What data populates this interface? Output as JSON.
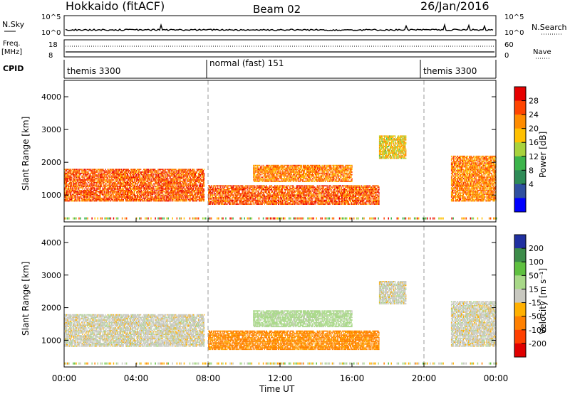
{
  "header": {
    "station": "Hokkaido (fitACF)",
    "beam": "Beam 02",
    "date": "26/Jan/2016"
  },
  "noise_panel": {
    "left_label": "N.Sky",
    "left_ticks": [
      "10^5",
      "10^0"
    ],
    "right_ticks": [
      "10^5",
      "10^0"
    ],
    "right_label": "N.Search"
  },
  "freq_panel": {
    "label_top": "Freq.",
    "label_units": "[MHz]",
    "left_ticks": [
      "18",
      "8"
    ],
    "right_ticks": [
      "60",
      "0"
    ],
    "right_label": "Nave"
  },
  "cpid_panel": {
    "label": "CPID",
    "modes": [
      "themis 3300",
      "normal (fast) 151",
      "themis 3300"
    ]
  },
  "axes": {
    "ylabel": "Slant Range [km]",
    "xlabel": "Time UT",
    "y_ticks": [
      "1000",
      "2000",
      "3000",
      "4000"
    ],
    "x_ticks": [
      "00:00",
      "04:00",
      "08:00",
      "12:00",
      "16:00",
      "20:00",
      "00:00"
    ]
  },
  "power_colorbar": {
    "label": "Power [dB]",
    "ticks": [
      "28",
      "24",
      "20",
      "16",
      "12",
      "8",
      "4"
    ],
    "colors": [
      "#e60000",
      "#ff4400",
      "#ff8c00",
      "#ffc000",
      "#a8d23c",
      "#3cb44b",
      "#2e8b57",
      "#3050a0",
      "#0000ff"
    ]
  },
  "velocity_colorbar": {
    "label": "Velocity [m s⁻¹]",
    "ticks": [
      "200",
      "100",
      "50",
      "15",
      "-15",
      "-50",
      "-100",
      "-200"
    ],
    "colors": [
      "#2030a0",
      "#3d8c4a",
      "#5fc040",
      "#a8d888",
      "#c8c8c0",
      "#ffb000",
      "#ff8000",
      "#ff4000",
      "#e00000"
    ]
  },
  "chart_data": {
    "type": "heatmap",
    "title": "Hokkaido (fitACF)",
    "xlabel": "Time UT",
    "ylabel": "Slant Range [km]",
    "x_range_hours": [
      0,
      24
    ],
    "y_range_km": [
      180,
      4500
    ],
    "cpid_boundaries_hours": [
      8,
      20
    ],
    "panels": [
      "Power [dB]",
      "Velocity [m s⁻¹]"
    ],
    "power_range_db": [
      0,
      30
    ],
    "velocity_range_ms": [
      -250,
      250
    ],
    "echo_regions": [
      {
        "t0": 0.0,
        "t1": 7.8,
        "r0": 800,
        "r1": 1800,
        "power": 24,
        "velocity": 0
      },
      {
        "t0": 8.0,
        "t1": 17.5,
        "r0": 700,
        "r1": 1300,
        "power": 24,
        "velocity": -60
      },
      {
        "t0": 10.5,
        "t1": 16.0,
        "r0": 1400,
        "r1": 1900,
        "power": 22,
        "velocity": 30
      },
      {
        "t0": 17.5,
        "t1": 19.0,
        "r0": 2100,
        "r1": 2800,
        "power": 18,
        "velocity": 0
      },
      {
        "t0": 21.5,
        "t1": 24.0,
        "r0": 800,
        "r1": 2200,
        "power": 22,
        "velocity": 0
      }
    ]
  }
}
